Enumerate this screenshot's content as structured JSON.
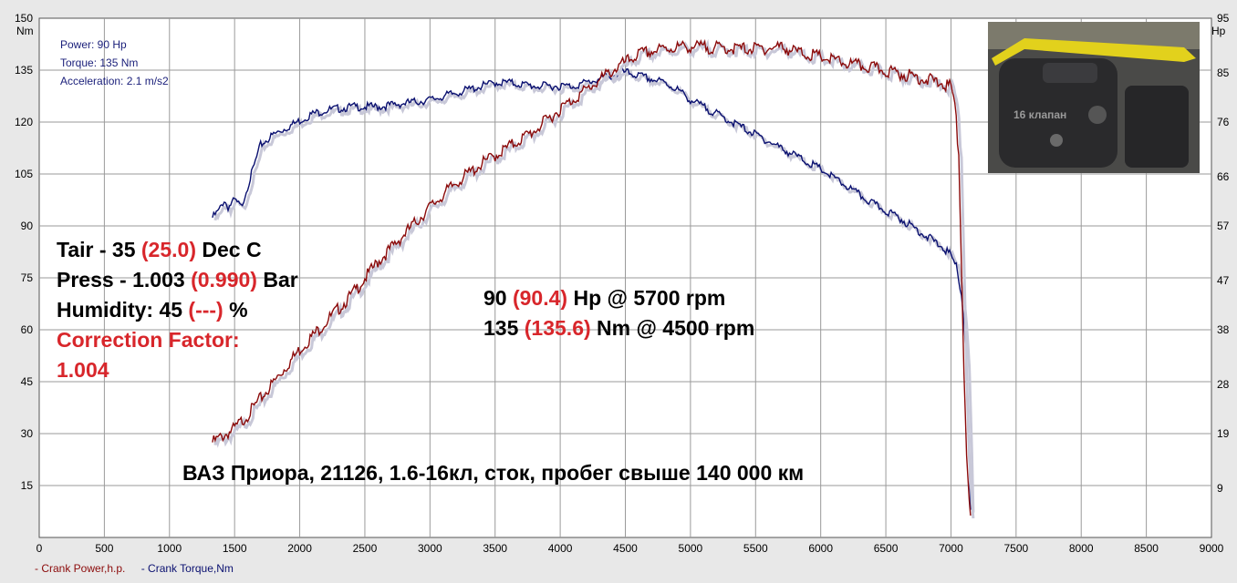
{
  "info": {
    "power": "Power: 90 Hp",
    "torque": "Torque: 135 Nm",
    "acceleration": "Acceleration: 2.1 m/s2"
  },
  "conditions": {
    "tair_a": "Tair - 35 ",
    "tair_b": "(25.0)",
    "tair_c": " Dec C",
    "press_a": "Press - 1.003 ",
    "press_b": "(0.990)",
    "press_c": " Bar",
    "hum_a": "Humidity: 45 ",
    "hum_b": "(---)",
    "hum_c": " %",
    "cf_label": "Correction Factor:",
    "cf_value": "1.004"
  },
  "peaks": {
    "hp_a": "90 ",
    "hp_b": "(90.4)",
    "hp_c": " Hp @ 5700 rpm",
    "nm_a": "135 ",
    "nm_b": "(135.6)",
    "nm_c": " Nm @ 4500 rpm"
  },
  "caption": "ВАЗ Приора, 21126, 1.6-16кл, сток, пробег свыше 140 000 км",
  "legend": {
    "power": "- Crank Power,h.p.",
    "torque": "- Crank Torque,Nm"
  },
  "colors": {
    "power": "#8b0a0a",
    "torque": "#0a1070",
    "grid": "#9a9a9a",
    "plot_bg": "#ffffff"
  },
  "photo_text": "16 клапан",
  "chart_data": {
    "type": "line",
    "xlim": [
      0,
      9000
    ],
    "x_ticks": [
      0,
      500,
      1000,
      1500,
      2000,
      2500,
      3000,
      3500,
      4000,
      4500,
      5000,
      5500,
      6000,
      6500,
      7000,
      7500,
      8000,
      8500,
      9000
    ],
    "y_left": {
      "unit": "Nm",
      "range": [
        0,
        150
      ],
      "ticks": [
        15,
        30,
        45,
        60,
        75,
        90,
        105,
        120,
        135,
        150
      ]
    },
    "y_right": {
      "unit": "Hp",
      "range": [
        0,
        95
      ],
      "ticks": [
        9,
        19,
        28,
        38,
        47,
        57,
        66,
        76,
        85,
        95
      ]
    },
    "series": [
      {
        "name": "Crank Torque,Nm",
        "axis": "left",
        "x": [
          1330,
          1380,
          1420,
          1450,
          1500,
          1550,
          1600,
          1650,
          1700,
          1800,
          1900,
          2000,
          2100,
          2200,
          2400,
          2600,
          2800,
          3000,
          3200,
          3400,
          3500,
          3600,
          3800,
          4000,
          4100,
          4200,
          4300,
          4400,
          4500,
          4600,
          4700,
          4800,
          4900,
          5000,
          5200,
          5400,
          5600,
          5800,
          6000,
          6200,
          6400,
          6600,
          6800,
          6950,
          7000,
          7050,
          7080,
          7100,
          7120,
          7140,
          7150
        ],
        "y": [
          93,
          95,
          98,
          96,
          98,
          96,
          102,
          108,
          114,
          117,
          119,
          121,
          123,
          124,
          125,
          125,
          126,
          127,
          129,
          131,
          132,
          132,
          131,
          131,
          131,
          132,
          133,
          134,
          135,
          134,
          133,
          132,
          130,
          127,
          123,
          119,
          115,
          111,
          107,
          102,
          97,
          93,
          88,
          84,
          82,
          78,
          70,
          62,
          50,
          25,
          8
        ]
      },
      {
        "name": "Crank Power,h.p.",
        "axis": "right",
        "x": [
          1330,
          1400,
          1500,
          1600,
          1800,
          2000,
          2200,
          2400,
          2600,
          2800,
          3000,
          3200,
          3400,
          3600,
          3800,
          4000,
          4200,
          4400,
          4500,
          4600,
          4700,
          4800,
          4900,
          5000,
          5200,
          5400,
          5600,
          5700,
          5800,
          6000,
          6200,
          6400,
          6600,
          6800,
          6950,
          7000,
          7030,
          7060,
          7080,
          7100,
          7120,
          7140,
          7150
        ],
        "y": [
          18,
          19,
          20.5,
          23,
          29,
          35,
          40,
          45,
          51,
          56,
          61,
          65.5,
          69,
          72,
          75,
          79,
          82.5,
          86,
          87.5,
          89,
          89.5,
          90,
          90.3,
          90.4,
          90.2,
          90,
          90.1,
          90.4,
          89.5,
          88.5,
          87.3,
          86.5,
          85.5,
          84.5,
          83.5,
          83,
          80,
          70,
          50,
          30,
          15,
          7,
          4
        ]
      }
    ]
  }
}
